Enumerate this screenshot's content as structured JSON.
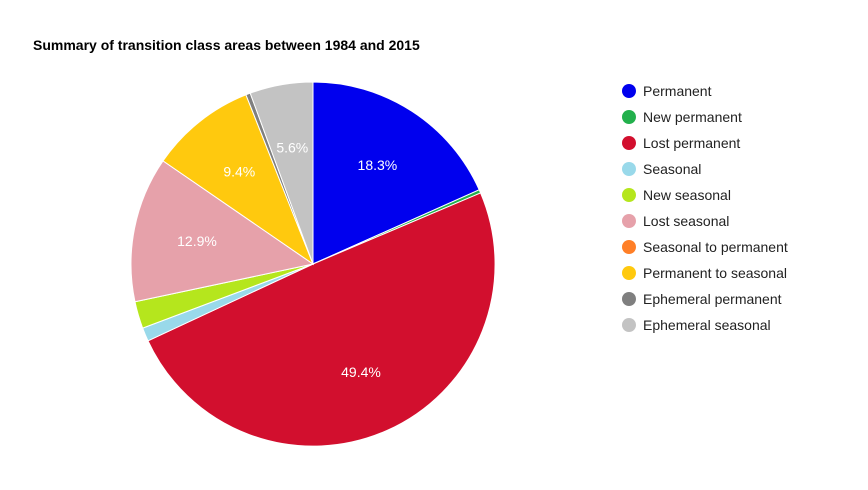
{
  "chart_data": {
    "type": "pie",
    "title": "Summary of transition class areas between 1984 and 2015",
    "legend_position": "right",
    "slices": [
      {
        "name": "Permanent",
        "value": 18.3,
        "label": "18.3%",
        "color": "#0000ee"
      },
      {
        "name": "New permanent",
        "value": 0.3,
        "label": "",
        "color": "#22b04c"
      },
      {
        "name": "Lost permanent",
        "value": 49.4,
        "label": "49.4%",
        "color": "#d20f2e"
      },
      {
        "name": "Seasonal",
        "value": 1.2,
        "label": "",
        "color": "#99d9ea"
      },
      {
        "name": "New seasonal",
        "value": 2.4,
        "label": "",
        "color": "#b5e61d"
      },
      {
        "name": "Lost seasonal",
        "value": 12.9,
        "label": "12.9%",
        "color": "#e6a1aa"
      },
      {
        "name": "Seasonal to permanent",
        "value": 0.0,
        "label": "",
        "color": "#ff7f27"
      },
      {
        "name": "Permanent to seasonal",
        "value": 9.4,
        "label": "9.4%",
        "color": "#ffc90e"
      },
      {
        "name": "Ephemeral permanent",
        "value": 0.4,
        "label": "",
        "color": "#7f7f7f"
      },
      {
        "name": "Ephemeral seasonal",
        "value": 5.6,
        "label": "5.6%",
        "color": "#c3c3c3"
      }
    ]
  }
}
